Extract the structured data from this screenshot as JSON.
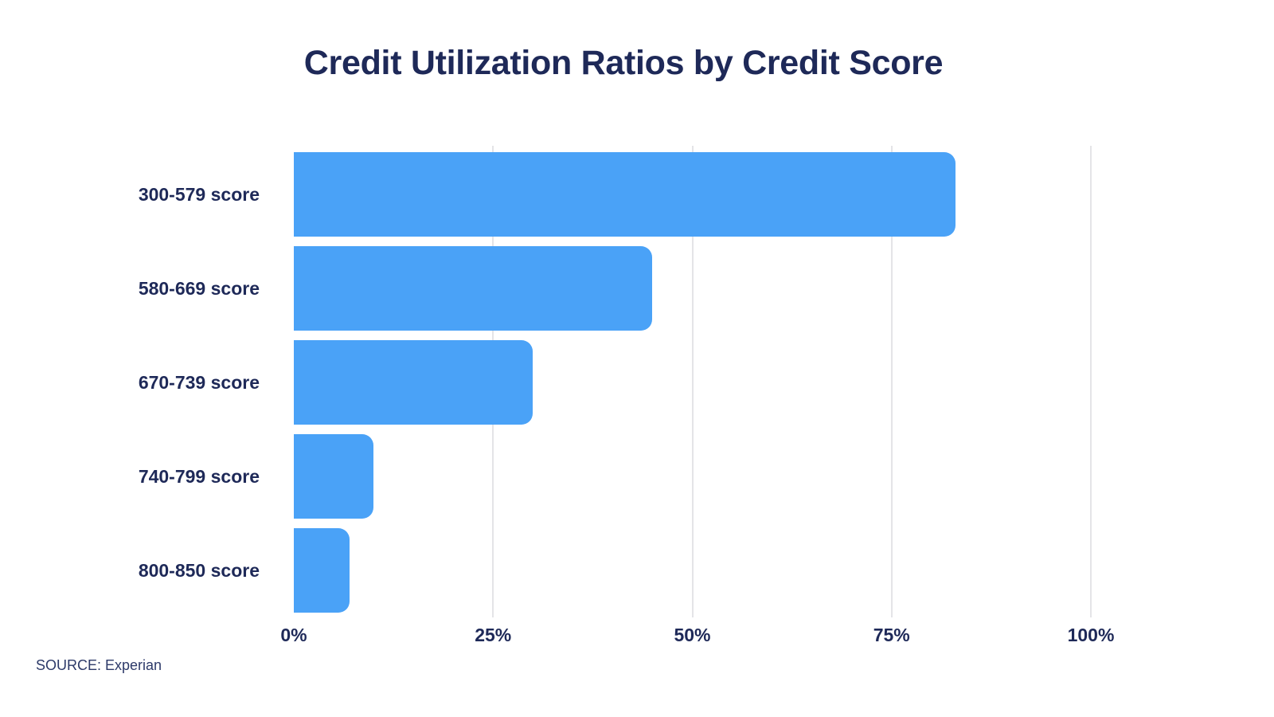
{
  "page": {
    "source": "SOURCE: Experian"
  },
  "colors": {
    "bar_blue": "#4aa2f7",
    "text_navy": "#1e2958",
    "gridline_gray": "#e4e4e7",
    "background": "#ffffff"
  },
  "chart_data": {
    "type": "bar",
    "orientation": "horizontal",
    "title": "Credit Utilization Ratios by Credit Score",
    "categories": [
      "300-579 score",
      "580-669 score",
      "670-739 score",
      "740-799 score",
      "800-850 score"
    ],
    "values": [
      83,
      45,
      30,
      10,
      7
    ],
    "unit": "%",
    "xlabel": "",
    "ylabel": "",
    "xlim": [
      0,
      100
    ],
    "x_ticks": [
      0,
      25,
      50,
      75,
      100
    ],
    "x_tick_labels": [
      "0%",
      "25%",
      "50%",
      "75%",
      "100%"
    ],
    "gridlines": [
      25,
      50,
      75,
      100
    ],
    "grid": "vertical-only",
    "legend": "none",
    "bar_color": "#4aa2f7",
    "source": "SOURCE: Experian"
  }
}
